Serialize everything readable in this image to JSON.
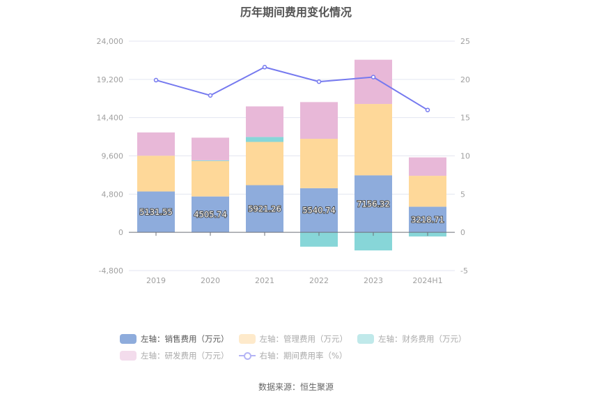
{
  "chart_data": {
    "type": "bar",
    "stacked": true,
    "title": "历年期间费用变化情况",
    "source": "数据来源：恒生聚源",
    "categories": [
      "2019",
      "2020",
      "2021",
      "2022",
      "2023",
      "2024H1"
    ],
    "left_axis": {
      "ylim": [
        -4800,
        24000
      ],
      "ticks": [
        -4800,
        0,
        4800,
        9600,
        14400,
        19200,
        24000
      ],
      "tick_labels": [
        "-4,800",
        "0",
        "4,800",
        "9,600",
        "14,400",
        "19,200",
        "24,000"
      ]
    },
    "right_axis": {
      "ylim": [
        -5,
        25
      ],
      "ticks": [
        -5,
        0,
        5,
        10,
        15,
        20,
        25
      ],
      "tick_labels": [
        "-5",
        "0",
        "5",
        "10",
        "15",
        "20",
        "25"
      ]
    },
    "grid": true,
    "legend_position": "bottom",
    "series": [
      {
        "name": "左轴：销售费用（万元）",
        "axis": "left",
        "kind": "bar",
        "color": "#8eacdc",
        "values": [
          5131.55,
          4505.74,
          5921.26,
          5540.74,
          7156.32,
          3218.71
        ],
        "labels": [
          "5131.55",
          "4505.74",
          "5921.26",
          "5540.74",
          "7156.32",
          "3218.71"
        ],
        "legend_active": true
      },
      {
        "name": "左轴：管理费用（万元）",
        "axis": "left",
        "kind": "bar",
        "color": "#fed899",
        "values": [
          4490,
          4450,
          5430,
          6200,
          8960,
          3880
        ]
      },
      {
        "name": "左轴：财务费用（万元）",
        "axis": "left",
        "kind": "bar",
        "color": "#87d6d8",
        "values": [
          0,
          90,
          620,
          -1800,
          -2270,
          -520
        ]
      },
      {
        "name": "左轴：研发费用（万元）",
        "axis": "left",
        "kind": "bar",
        "color": "#e8b8d8",
        "values": [
          2920,
          2840,
          3840,
          4610,
          5550,
          2310
        ]
      },
      {
        "name": "右轴：期间费用率（%）",
        "axis": "right",
        "kind": "line",
        "color": "#7579ef",
        "values": [
          19.9,
          17.9,
          21.6,
          19.7,
          20.3,
          16.0
        ]
      }
    ],
    "legend_colors": {
      "sales": "#8eacdc",
      "mgmt": "#feeacb",
      "finance": "#c0e9ea",
      "rnd": "#f3dcec",
      "rate": "#b4b4f5"
    }
  }
}
